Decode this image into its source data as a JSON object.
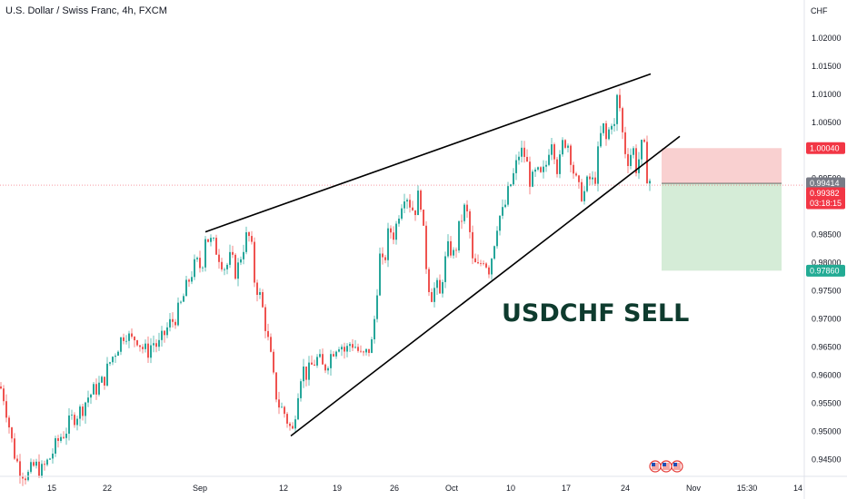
{
  "symbol_title": "U.S. Dollar / Swiss Franc, 4h, FXCM",
  "currency_label": "CHF",
  "annotation": "USDCHF SELL",
  "colors": {
    "up": "#26a69a",
    "down": "#ef5350",
    "risk_zone": "#f9d0d0",
    "reward_zone": "#d5ecd7",
    "stop_tag": "#f23645",
    "target_tag": "#22ab94",
    "last_tag": "#787b86",
    "price_tag": "#f23645",
    "annotation": "#0e3b2e"
  },
  "chart_data": {
    "type": "candlestick",
    "x_ticks": [
      "15",
      "22",
      "Sep",
      "12",
      "19",
      "26",
      "Oct",
      "10",
      "17",
      "24",
      "Nov",
      "15:30",
      "14"
    ],
    "y_ticks": [
      "1.02000",
      "1.01500",
      "1.01000",
      "1.00500",
      "1.00000",
      "0.99500",
      "0.99000",
      "0.98500",
      "0.98000",
      "0.97500",
      "0.97000",
      "0.96500",
      "0.96000",
      "0.95500",
      "0.95000",
      "0.94500"
    ],
    "ylim": [
      0.9425,
      1.0232
    ],
    "close_path": [
      [
        0,
        0.958
      ],
      [
        3,
        0.957
      ],
      [
        8,
        0.953
      ],
      [
        12,
        0.949
      ],
      [
        16,
        0.946
      ],
      [
        20,
        0.944
      ],
      [
        24,
        0.943
      ],
      [
        30,
        0.942
      ],
      [
        38,
        0.944
      ],
      [
        46,
        0.943
      ],
      [
        54,
        0.945
      ],
      [
        60,
        0.947
      ],
      [
        66,
        0.949
      ],
      [
        72,
        0.95
      ],
      [
        78,
        0.952
      ],
      [
        84,
        0.953
      ],
      [
        90,
        0.954
      ],
      [
        96,
        0.956
      ],
      [
        102,
        0.957
      ],
      [
        108,
        0.958
      ],
      [
        114,
        0.959
      ],
      [
        120,
        0.962
      ],
      [
        126,
        0.964
      ],
      [
        132,
        0.966
      ],
      [
        138,
        0.968
      ],
      [
        144,
        0.966
      ],
      [
        150,
        0.967
      ],
      [
        156,
        0.965
      ],
      [
        162,
        0.964
      ],
      [
        168,
        0.966
      ],
      [
        174,
        0.965
      ],
      [
        180,
        0.967
      ],
      [
        186,
        0.969
      ],
      [
        192,
        0.97
      ],
      [
        198,
        0.972
      ],
      [
        204,
        0.975
      ],
      [
        210,
        0.978
      ],
      [
        216,
        0.98
      ],
      [
        222,
        0.979
      ],
      [
        226,
        0.985
      ],
      [
        230,
        0.984
      ],
      [
        236,
        0.983
      ],
      [
        242,
        0.981
      ],
      [
        248,
        0.979
      ],
      [
        254,
        0.981
      ],
      [
        260,
        0.978
      ],
      [
        266,
        0.982
      ],
      [
        272,
        0.985
      ],
      [
        276,
        0.984
      ],
      [
        280,
        0.977
      ],
      [
        286,
        0.974
      ],
      [
        290,
        0.971
      ],
      [
        294,
        0.967
      ],
      [
        298,
        0.963
      ],
      [
        302,
        0.958
      ],
      [
        306,
        0.955
      ],
      [
        310,
        0.954
      ],
      [
        314,
        0.953
      ],
      [
        318,
        0.951
      ],
      [
        322,
        0.95
      ],
      [
        326,
        0.955
      ],
      [
        330,
        0.96
      ],
      [
        334,
        0.961
      ],
      [
        338,
        0.96
      ],
      [
        344,
        0.962
      ],
      [
        350,
        0.963
      ],
      [
        356,
        0.961
      ],
      [
        362,
        0.963
      ],
      [
        368,
        0.965
      ],
      [
        374,
        0.966
      ],
      [
        380,
        0.964
      ],
      [
        386,
        0.966
      ],
      [
        392,
        0.965
      ],
      [
        398,
        0.963
      ],
      [
        404,
        0.964
      ],
      [
        410,
        0.966
      ],
      [
        414,
        0.974
      ],
      [
        418,
        0.981
      ],
      [
        422,
        0.979
      ],
      [
        428,
        0.986
      ],
      [
        434,
        0.985
      ],
      [
        440,
        0.99
      ],
      [
        446,
        0.993
      ],
      [
        450,
        0.991
      ],
      [
        456,
        0.989
      ],
      [
        462,
        0.993
      ],
      [
        466,
        0.985
      ],
      [
        470,
        0.978
      ],
      [
        474,
        0.974
      ],
      [
        480,
        0.976
      ],
      [
        484,
        0.974
      ],
      [
        488,
        0.979
      ],
      [
        494,
        0.983
      ],
      [
        500,
        0.981
      ],
      [
        506,
        0.987
      ],
      [
        512,
        0.99
      ],
      [
        516,
        0.987
      ],
      [
        520,
        0.98
      ],
      [
        526,
        0.979
      ],
      [
        532,
        0.981
      ],
      [
        538,
        0.979
      ],
      [
        542,
        0.982
      ],
      [
        548,
        0.988
      ],
      [
        554,
        0.989
      ],
      [
        560,
        0.993
      ],
      [
        566,
        0.996
      ],
      [
        572,
        1.0
      ],
      [
        578,
        0.999
      ],
      [
        584,
        0.994
      ],
      [
        590,
        0.996
      ],
      [
        596,
        0.995
      ],
      [
        602,
        0.998
      ],
      [
        606,
        1.003
      ],
      [
        610,
        1.0
      ],
      [
        614,
        0.996
      ],
      [
        620,
        1.002
      ],
      [
        626,
        1.001
      ],
      [
        630,
        0.997
      ],
      [
        636,
        0.993
      ],
      [
        642,
        0.992
      ],
      [
        648,
        0.995
      ],
      [
        654,
        0.994
      ],
      [
        660,
        1.002
      ],
      [
        664,
        1.004
      ],
      [
        668,
        1.001
      ],
      [
        672,
        1.006
      ],
      [
        676,
        1.004
      ],
      [
        680,
        1.011
      ],
      [
        684,
        1.004
      ],
      [
        688,
        1.0
      ],
      [
        692,
        0.998
      ],
      [
        696,
        1.001
      ],
      [
        700,
        0.997
      ],
      [
        704,
        0.999
      ],
      [
        708,
        1.002
      ],
      [
        711,
        0.996
      ],
      [
        714,
        0.995
      ],
      [
        717,
        0.994
      ]
    ],
    "trendlines": [
      {
        "name": "upper",
        "from": [
          226,
          0.9855
        ],
        "to": [
          716,
          1.0136
        ]
      },
      {
        "name": "lower",
        "from": [
          320,
          0.9492
        ],
        "to": [
          748,
          1.0025
        ]
      }
    ],
    "position": {
      "type": "short",
      "x_start": 728,
      "x_end": 860,
      "stop": 1.0004,
      "entry": 0.99414,
      "target": 0.9786
    },
    "price_levels": [
      {
        "value": 1.0004,
        "label": "1.00040",
        "kind": "stop"
      },
      {
        "value": 0.99414,
        "label": "0.99414",
        "kind": "last"
      },
      {
        "value": 0.99382,
        "label": "0.99382",
        "sub": "03:18:15",
        "kind": "price"
      },
      {
        "value": 0.9786,
        "label": "0.97860",
        "kind": "target"
      }
    ],
    "events": [
      {
        "name": "us-flag-icon-1",
        "x": 721
      },
      {
        "name": "us-flag-icon-2",
        "x": 733
      },
      {
        "name": "us-flag-icon-3",
        "x": 745
      }
    ]
  }
}
